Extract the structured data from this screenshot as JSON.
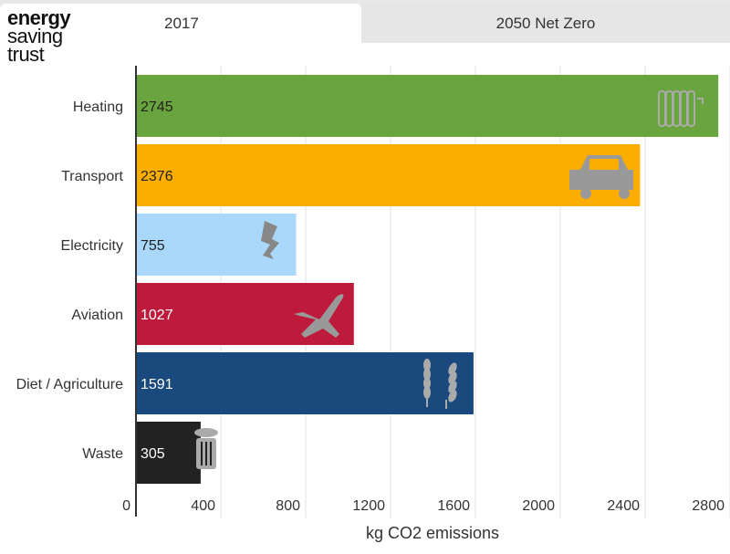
{
  "logo": {
    "line1": "energy",
    "line2": "saving",
    "line3": "trust"
  },
  "tabs": [
    {
      "label": "2017",
      "active": true
    },
    {
      "label": "2050 Net Zero",
      "active": false
    }
  ],
  "chart_data": {
    "type": "bar",
    "orientation": "horizontal",
    "categories": [
      "Heating",
      "Transport",
      "Electricity",
      "Aviation",
      "Diet / Agriculture",
      "Waste"
    ],
    "values": [
      2745,
      2376,
      755,
      1027,
      1591,
      305
    ],
    "colors": [
      "#6aa43f",
      "#fbad00",
      "#aad8fb",
      "#be1a3b",
      "#1a4a7d",
      "#222222"
    ],
    "label_colors": [
      "#222222",
      "#222222",
      "#222222",
      "#ffffff",
      "#ffffff",
      "#ffffff"
    ],
    "icons": [
      "radiator-icon",
      "car-icon",
      "lightning-icon",
      "airplane-icon",
      "wheat-icon",
      "bin-icon"
    ],
    "xlabel": "kg CO2 emissions",
    "xlim": [
      0,
      2800
    ],
    "xticks": [
      0,
      400,
      800,
      1200,
      1600,
      2000,
      2400,
      2800
    ],
    "grid": true
  }
}
